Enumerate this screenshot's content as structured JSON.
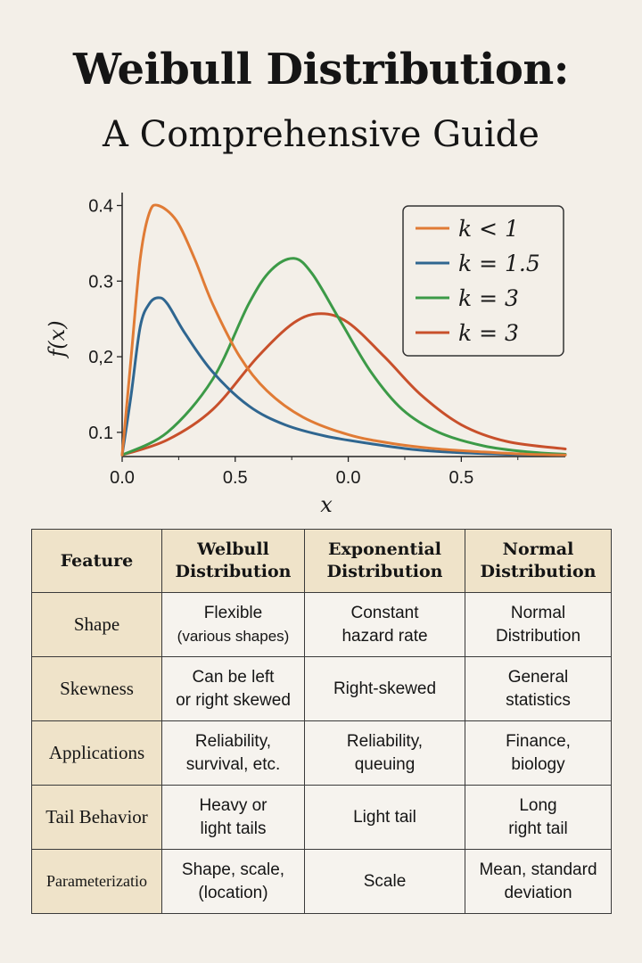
{
  "title": "Weibull Distribution:",
  "subtitle": "A Comprehensive Guide",
  "chart_data": {
    "type": "line",
    "xlabel": "x",
    "ylabel": "f(x)",
    "x_ticks": [
      {
        "value": 0.0,
        "label": "0.0"
      },
      {
        "value": 0.25,
        "label": "0.5"
      },
      {
        "value": 0.5,
        "label": "0.0"
      },
      {
        "value": 0.75,
        "label": "0.5"
      }
    ],
    "y_ticks": [
      {
        "value": 0.1,
        "label": "0.1"
      },
      {
        "value": 0.2,
        "label": "0,2"
      },
      {
        "value": 0.3,
        "label": "0.3"
      },
      {
        "value": 0.4,
        "label": "0.4"
      }
    ],
    "xlim": [
      0,
      0.98
    ],
    "ylim": [
      0.068,
      0.41
    ],
    "grid": false,
    "legend": "top-right",
    "series": [
      {
        "name": "k < 1",
        "color": "#e07b35",
        "x": [
          0,
          0.02,
          0.04,
          0.06,
          0.08,
          0.12,
          0.16,
          0.2,
          0.26,
          0.32,
          0.4,
          0.5,
          0.6,
          0.7,
          0.8,
          0.9,
          0.98
        ],
        "y": [
          0.07,
          0.2,
          0.33,
          0.39,
          0.4,
          0.38,
          0.33,
          0.27,
          0.2,
          0.155,
          0.12,
          0.097,
          0.085,
          0.078,
          0.074,
          0.071,
          0.07
        ]
      },
      {
        "name": "k = 1.5",
        "color": "#2f6690",
        "x": [
          0,
          0.02,
          0.04,
          0.06,
          0.08,
          0.1,
          0.14,
          0.2,
          0.28,
          0.36,
          0.45,
          0.55,
          0.65,
          0.75,
          0.85,
          0.98
        ],
        "y": [
          0.07,
          0.15,
          0.24,
          0.27,
          0.278,
          0.27,
          0.23,
          0.18,
          0.135,
          0.11,
          0.095,
          0.085,
          0.077,
          0.073,
          0.071,
          0.07
        ]
      },
      {
        "name": "k = 3",
        "color": "#3c9a47",
        "x": [
          0,
          0.1,
          0.2,
          0.28,
          0.33,
          0.38,
          0.42,
          0.48,
          0.55,
          0.62,
          0.7,
          0.8,
          0.9,
          0.98
        ],
        "y": [
          0.07,
          0.1,
          0.17,
          0.27,
          0.315,
          0.33,
          0.31,
          0.25,
          0.18,
          0.13,
          0.1,
          0.082,
          0.074,
          0.071
        ]
      },
      {
        "name": "k = 3",
        "color": "#c8502b",
        "x": [
          0,
          0.1,
          0.2,
          0.3,
          0.38,
          0.44,
          0.5,
          0.58,
          0.66,
          0.75,
          0.85,
          0.98
        ],
        "y": [
          0.07,
          0.09,
          0.13,
          0.2,
          0.245,
          0.257,
          0.245,
          0.2,
          0.15,
          0.11,
          0.088,
          0.078
        ]
      }
    ]
  },
  "table": {
    "headers": [
      [
        "Feature"
      ],
      [
        "Welbull",
        "Distribution"
      ],
      [
        "Exponential",
        "Distribution"
      ],
      [
        "Normal",
        "Distribution"
      ]
    ],
    "rows": [
      {
        "feature": "Shape",
        "cells": [
          [
            "Flexible",
            "(various shapes)"
          ],
          [
            "Constant",
            "hazard rate"
          ],
          [
            "Normal",
            "Distribution"
          ]
        ]
      },
      {
        "feature": "Skewness",
        "cells": [
          [
            "Can be left",
            "or right skewed"
          ],
          [
            "Right-skewed"
          ],
          [
            "General",
            "statistics"
          ]
        ]
      },
      {
        "feature": "Applications",
        "cells": [
          [
            "Reliability,",
            "survival, etc."
          ],
          [
            "Reliability,",
            "queuing"
          ],
          [
            "Finance,",
            "biology"
          ]
        ]
      },
      {
        "feature": "Tail Behavior",
        "cells": [
          [
            "Heavy or",
            "light tails"
          ],
          [
            "Light tail"
          ],
          [
            "Long",
            "right tail"
          ]
        ]
      },
      {
        "feature": "Parameterizatio",
        "cells": [
          [
            "Shape, scale,",
            "(location)"
          ],
          [
            "Scale"
          ],
          [
            "Mean, standard",
            "deviation"
          ]
        ]
      }
    ]
  }
}
